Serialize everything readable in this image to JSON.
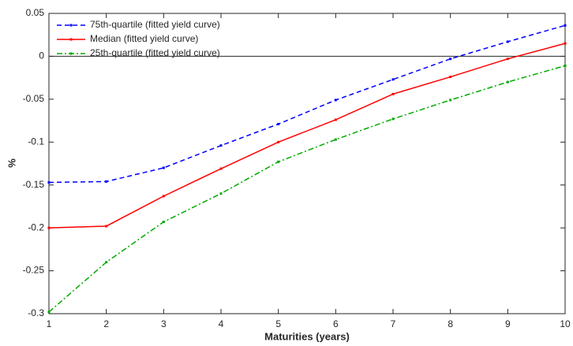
{
  "chart_data": {
    "type": "line",
    "x_label": "Maturities (years)",
    "y_label": "%",
    "x": [
      1,
      2,
      3,
      4,
      5,
      6,
      7,
      8,
      9,
      10
    ],
    "series": [
      {
        "name": "75th-quartile (fitted yield curve)",
        "color": "#0000ff",
        "style": "dashed",
        "values": [
          -0.147,
          -0.146,
          -0.13,
          -0.104,
          -0.079,
          -0.051,
          -0.027,
          -0.003,
          0.017,
          0.036
        ]
      },
      {
        "name": "Median (fitted yield curve)",
        "color": "#ff0000",
        "style": "solid",
        "values": [
          -0.2,
          -0.198,
          -0.163,
          -0.131,
          -0.1,
          -0.074,
          -0.044,
          -0.024,
          -0.003,
          0.015
        ]
      },
      {
        "name": "25th-quartile (fitted yield curve)",
        "color": "#00aa00",
        "style": "dashdot",
        "values": [
          -0.298,
          -0.24,
          -0.193,
          -0.16,
          -0.123,
          -0.097,
          -0.073,
          -0.051,
          -0.03,
          -0.011
        ]
      }
    ],
    "xlim": [
      1,
      10
    ],
    "xticks": [
      1,
      2,
      3,
      4,
      5,
      6,
      7,
      8,
      9,
      10
    ],
    "ylim": [
      -0.3,
      0.05
    ],
    "yticks": [
      0.05,
      0,
      -0.05,
      -0.1,
      -0.15,
      -0.2,
      -0.25,
      -0.3
    ],
    "legend": "top-left"
  }
}
